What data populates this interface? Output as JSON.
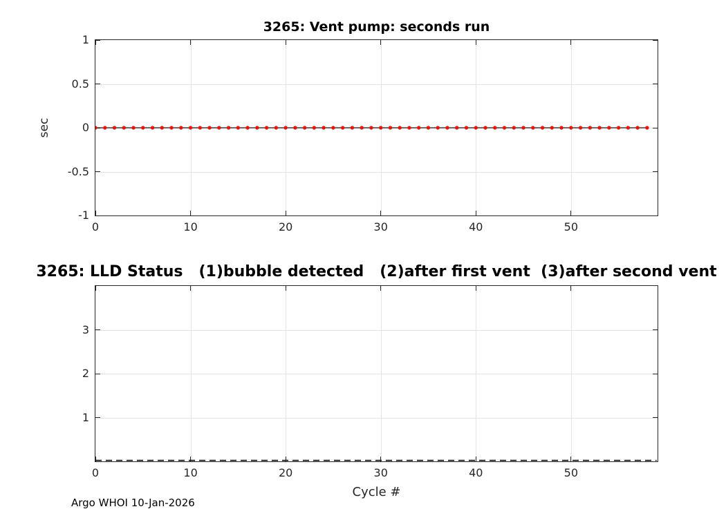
{
  "figure": {
    "footer": "Argo WHOI 10-Jan-2026",
    "background_color": "#ffffff",
    "axis_color": "#262626",
    "grid_color": "#e4e4e4"
  },
  "chart_data": [
    {
      "type": "line",
      "title": "3265: Vent pump: seconds run",
      "xlabel": "",
      "ylabel": "sec",
      "xlim": [
        0,
        59.1
      ],
      "ylim": [
        -1,
        1
      ],
      "xticks": [
        0,
        10,
        20,
        30,
        40,
        50
      ],
      "yticks": [
        -1,
        -0.5,
        0,
        0.5,
        1
      ],
      "ytick_labels": [
        "-1",
        "-0.5",
        "0",
        "0.5",
        "1"
      ],
      "grid": true,
      "legend": "none",
      "series": [
        {
          "name": "vent-pump-seconds-run",
          "line_style": "solid",
          "line_color": "#1a1a1a",
          "marker": "dot",
          "marker_color": "#e8150d",
          "x": [
            0,
            1,
            2,
            3,
            4,
            5,
            6,
            7,
            8,
            9,
            10,
            11,
            12,
            13,
            14,
            15,
            16,
            17,
            18,
            19,
            20,
            21,
            22,
            23,
            24,
            25,
            26,
            27,
            28,
            29,
            30,
            31,
            32,
            33,
            34,
            35,
            36,
            37,
            38,
            39,
            40,
            41,
            42,
            43,
            44,
            45,
            46,
            47,
            48,
            49,
            50,
            51,
            52,
            53,
            54,
            55,
            56,
            57,
            58
          ],
          "values": [
            0,
            0,
            0,
            0,
            0,
            0,
            0,
            0,
            0,
            0,
            0,
            0,
            0,
            0,
            0,
            0,
            0,
            0,
            0,
            0,
            0,
            0,
            0,
            0,
            0,
            0,
            0,
            0,
            0,
            0,
            0,
            0,
            0,
            0,
            0,
            0,
            0,
            0,
            0,
            0,
            0,
            0,
            0,
            0,
            0,
            0,
            0,
            0,
            0,
            0,
            0,
            0,
            0,
            0,
            0,
            0,
            0,
            0,
            0
          ]
        }
      ]
    },
    {
      "type": "line",
      "title": "3265: LLD Status   (1)bubble detected   (2)after first vent  (3)after second vent",
      "xlabel": "Cycle #",
      "ylabel": "",
      "xlim": [
        0,
        59.1
      ],
      "ylim": [
        0,
        4
      ],
      "xticks": [
        0,
        10,
        20,
        30,
        40,
        50
      ],
      "yticks": [
        1,
        2,
        3
      ],
      "ytick_labels": [
        "1",
        "2",
        "3"
      ],
      "grid": true,
      "legend": "none",
      "series": [
        {
          "name": "lld-status",
          "line_style": "dashed",
          "line_color": "#111111",
          "marker": "none",
          "marker_color": "#111111",
          "x": [
            0,
            1,
            2,
            3,
            4,
            5,
            6,
            7,
            8,
            9,
            10,
            11,
            12,
            13,
            14,
            15,
            16,
            17,
            18,
            19,
            20,
            21,
            22,
            23,
            24,
            25,
            26,
            27,
            28,
            29,
            30,
            31,
            32,
            33,
            34,
            35,
            36,
            37,
            38,
            39,
            40,
            41,
            42,
            43,
            44,
            45,
            46,
            47,
            48,
            49,
            50,
            51,
            52,
            53,
            54,
            55,
            56,
            57,
            58,
            59
          ],
          "values": [
            0,
            0,
            0,
            0,
            0,
            0,
            0,
            0,
            0,
            0,
            0,
            0,
            0,
            0,
            0,
            0,
            0,
            0,
            0,
            0,
            0,
            0,
            0,
            0,
            0,
            0,
            0,
            0,
            0,
            0,
            0,
            0,
            0,
            0,
            0,
            0,
            0,
            0,
            0,
            0,
            0,
            0,
            0,
            0,
            0,
            0,
            0,
            0,
            0,
            0,
            0,
            0,
            0,
            0,
            0,
            0,
            0,
            0,
            0,
            0
          ]
        }
      ]
    }
  ]
}
